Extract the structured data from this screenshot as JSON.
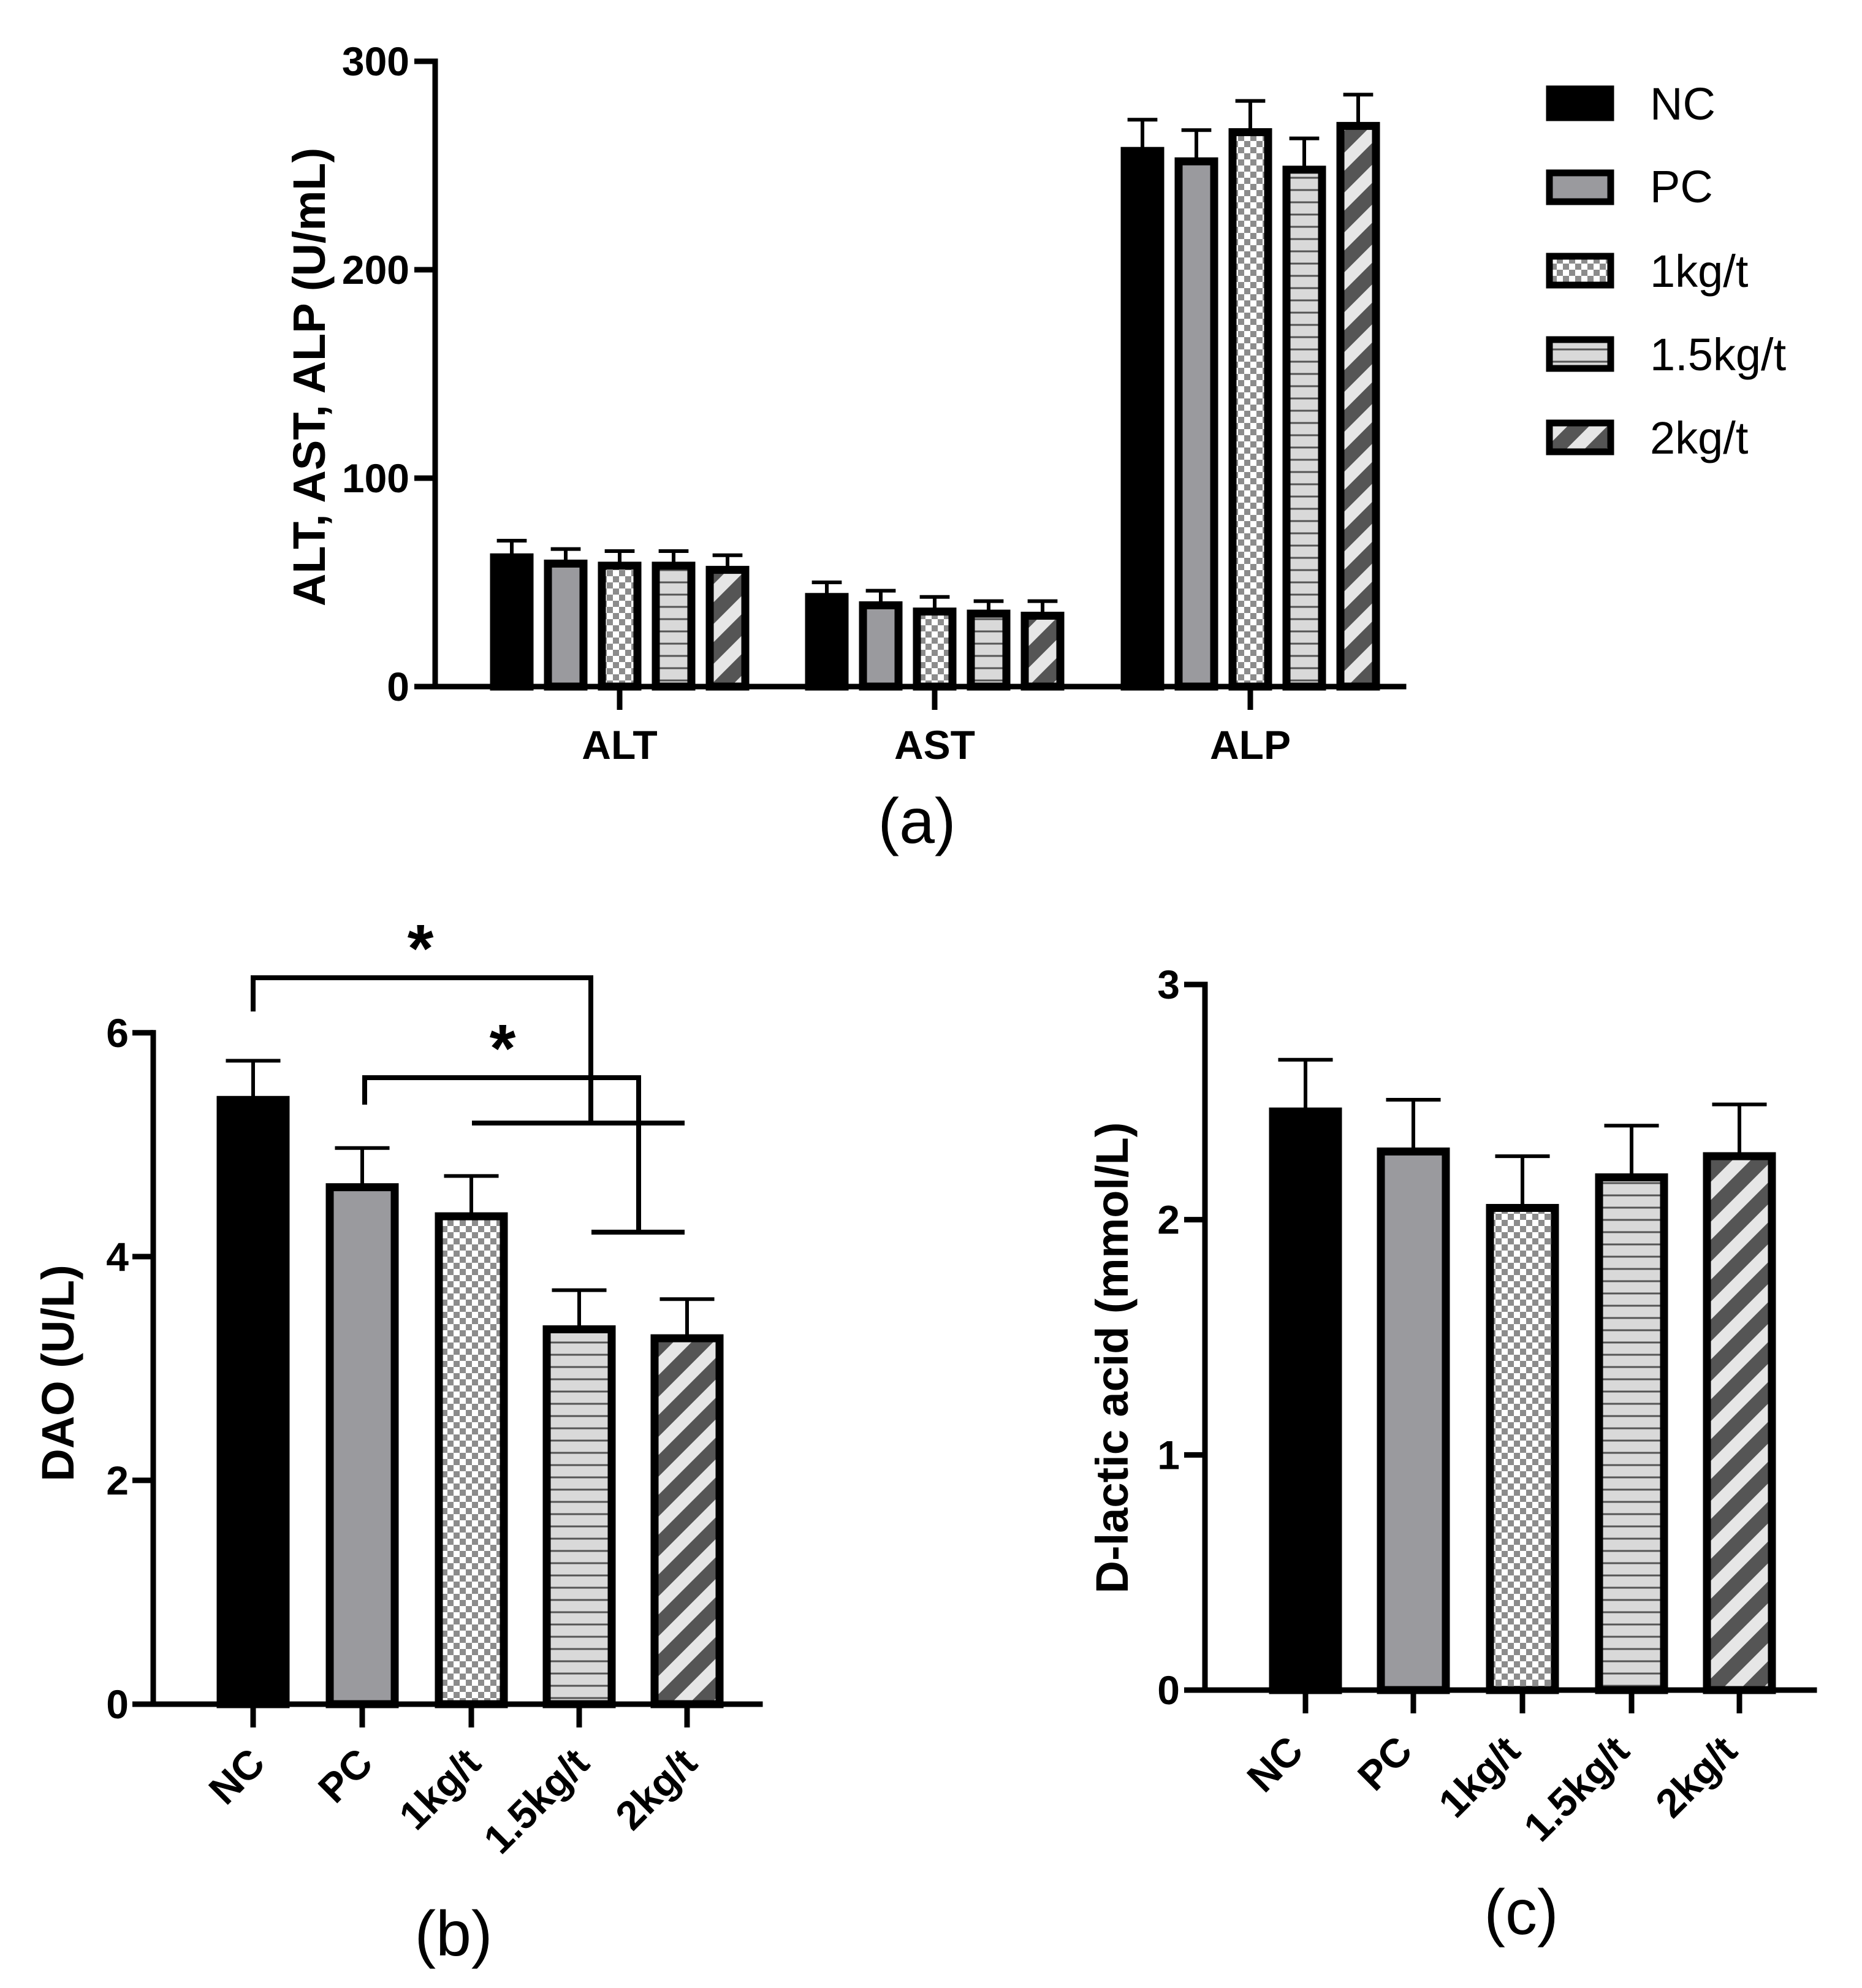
{
  "chart_data": [
    {
      "id": "a",
      "type": "bar",
      "panel_label": "(a)",
      "categories": [
        "ALT",
        "AST",
        "ALP"
      ],
      "series": [
        {
          "name": "NC",
          "pattern": "solid-black",
          "values": [
            62,
            43,
            257
          ],
          "errors": [
            8,
            7,
            15
          ]
        },
        {
          "name": "PC",
          "pattern": "solid-gray",
          "values": [
            59,
            39,
            252
          ],
          "errors": [
            7,
            7,
            15
          ]
        },
        {
          "name": "1kg/t",
          "pattern": "checker",
          "values": [
            58,
            36,
            266
          ],
          "errors": [
            7,
            7,
            15
          ]
        },
        {
          "name": "1.5kg/t",
          "pattern": "horizontal-lines",
          "values": [
            58,
            35,
            248
          ],
          "errors": [
            7,
            6,
            15
          ]
        },
        {
          "name": "2kg/t",
          "pattern": "diagonal",
          "values": [
            56,
            34,
            269
          ],
          "errors": [
            7,
            7,
            15
          ]
        }
      ],
      "ylabel": "ALT, AST, ALP (U/mL)",
      "xlabel": "",
      "ylim": [
        0,
        300
      ],
      "yticks": [
        0,
        100,
        200,
        300
      ],
      "legend": "top-right"
    },
    {
      "id": "b",
      "type": "bar",
      "panel_label": "(b)",
      "categories": [
        "NC",
        "PC",
        "1kg/t",
        "1.5kg/t",
        "2kg/t"
      ],
      "patterns": [
        "solid-black",
        "solid-gray",
        "checker",
        "horizontal-lines",
        "diagonal"
      ],
      "values": [
        5.4,
        4.62,
        4.36,
        3.35,
        3.27
      ],
      "errors": [
        0.35,
        0.35,
        0.36,
        0.35,
        0.35
      ],
      "ylabel": "DAO (U/L)",
      "xlabel": "",
      "ylim": [
        0,
        6.3
      ],
      "yticks": [
        0,
        2,
        4,
        6
      ],
      "significance": [
        {
          "from": "NC",
          "to": [
            "1.5kg/t",
            "2kg/t"
          ],
          "label": "*"
        },
        {
          "from": "PC",
          "to": [
            "1.5kg/t",
            "2kg/t"
          ],
          "label": "*"
        }
      ]
    },
    {
      "id": "c",
      "type": "bar",
      "panel_label": "(c)",
      "categories": [
        "NC",
        "PC",
        "1kg/t",
        "1.5kg/t",
        "2kg/t"
      ],
      "patterns": [
        "solid-black",
        "solid-gray",
        "checker",
        "horizontal-lines",
        "diagonal"
      ],
      "values": [
        2.46,
        2.29,
        2.05,
        2.18,
        2.27
      ],
      "errors": [
        0.22,
        0.22,
        0.22,
        0.22,
        0.22
      ],
      "ylabel": "D-lactic acid (mmol/L)",
      "xlabel": "",
      "ylim": [
        0,
        3
      ],
      "yticks": [
        0,
        1,
        2,
        3
      ]
    }
  ]
}
